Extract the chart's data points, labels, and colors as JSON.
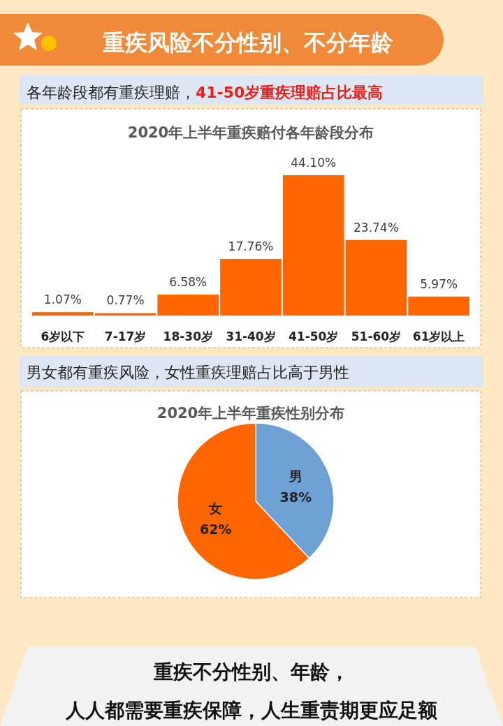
{
  "chart_data": [
    {
      "type": "bar",
      "title": "2020年上半年重疾赔付各年龄段分布",
      "subtitle": "各年龄段都有重疾理赔，**41-50岁重疾理赔占比最高**",
      "annotations": [
        "重疾风险不分性别、不分年龄"
      ],
      "categories": [
        "6岁以下",
        "7-17岁",
        "18-30岁",
        "31-40岁",
        "41-50岁",
        "51-60岁",
        "61岁以上"
      ],
      "values": [
        1.07,
        0.77,
        6.58,
        17.76,
        44.1,
        23.74,
        5.97
      ],
      "value_labels": [
        "1.07%",
        "0.77%",
        "6.58%",
        "17.76%",
        "44.10%",
        "23.74%",
        "5.97%"
      ],
      "color": "#ff6600"
    },
    {
      "type": "pie",
      "title": "2020年上半年重疾性别分布",
      "subtitle": "男女都有重疾风险，女性重疾理赔占比高于男性",
      "annotations": [
        "重疾不分性别、年龄，",
        "人人都需要重疾保障，人生重责期更应足额"
      ],
      "categories": [
        "男",
        "女"
      ],
      "values": [
        38,
        62
      ],
      "value_labels": [
        "38%",
        "62%"
      ],
      "colors": [
        "#6fa0d4",
        "#ff6600"
      ]
    }
  ]
}
